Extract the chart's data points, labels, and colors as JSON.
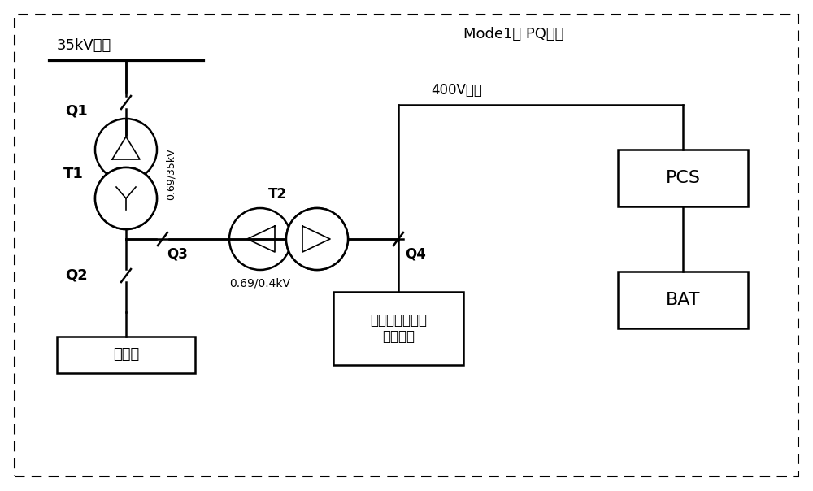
{
  "background_color": "#ffffff",
  "border_color": "#000000",
  "title_mode": "Mode1： PQ控制",
  "label_35kV": "35kV母线",
  "label_400V": "400V母线",
  "label_Q1": "Q1",
  "label_Q2": "Q2",
  "label_Q3": "Q3",
  "label_Q4": "Q4",
  "label_T1": "T1",
  "label_T2": "T2",
  "label_T1_ratio": "0.69/35kV",
  "label_T2_ratio": "0.69/0.4kV",
  "label_bianliu": "变流器",
  "label_wind": "风力发电机组自\n用电系统",
  "label_PCS": "PCS",
  "label_BAT": "BAT",
  "line_color": "#000000",
  "text_color": "#000000",
  "font_size_labels": 11,
  "font_size_mode": 12
}
